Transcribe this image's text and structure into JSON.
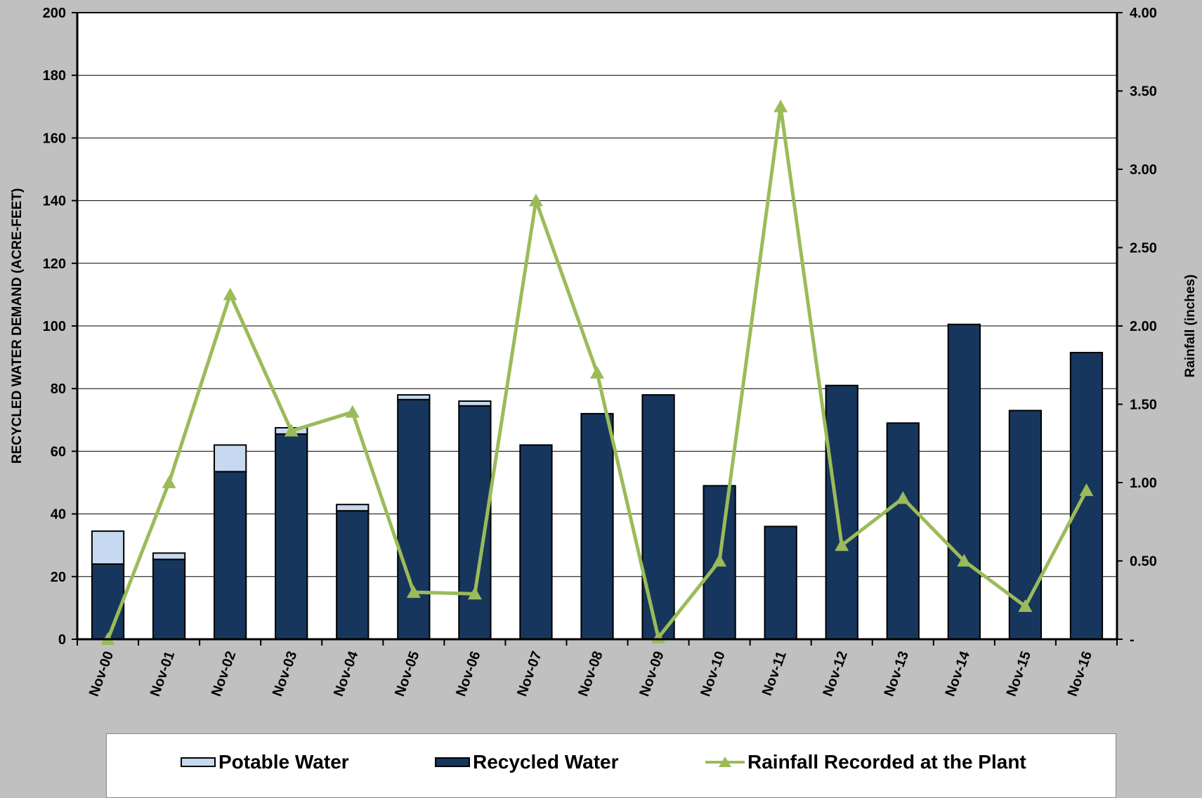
{
  "chart_data": {
    "type": "bar",
    "stacked": true,
    "categories": [
      "Nov-00",
      "Nov-01",
      "Nov-02",
      "Nov-03",
      "Nov-04",
      "Nov-05",
      "Nov-06",
      "Nov-07",
      "Nov-08",
      "Nov-09",
      "Nov-10",
      "Nov-11",
      "Nov-12",
      "Nov-13",
      "Nov-14",
      "Nov-15",
      "Nov-16"
    ],
    "series": [
      {
        "name": "Recycled Water",
        "axis": "left",
        "type": "bar",
        "color": "#17365d",
        "values": [
          24,
          25.5,
          53.5,
          65.5,
          41,
          76.5,
          74.5,
          62,
          72,
          78,
          49,
          36,
          81,
          69,
          100.5,
          73,
          91.5
        ]
      },
      {
        "name": "Potable Water",
        "axis": "left",
        "type": "bar",
        "color": "#c6d9f1",
        "values": [
          10.5,
          2,
          8.5,
          2,
          2,
          1.5,
          1.5,
          0,
          0,
          0,
          0,
          0,
          0,
          0,
          0,
          0,
          0
        ]
      },
      {
        "name": "Rainfall Recorded at the Plant",
        "axis": "right",
        "type": "line",
        "color": "#9bbb59",
        "values": [
          0,
          1.0,
          2.2,
          1.33,
          1.45,
          0.3,
          0.29,
          2.8,
          1.7,
          0.01,
          0.5,
          3.4,
          0.6,
          0.9,
          0.5,
          0.21,
          0.95
        ]
      }
    ],
    "ylabel": "RECYCLED WATER DEMAND (ACRE-FEET)",
    "y2label": "Rainfall (inches)",
    "ylim": [
      0,
      200
    ],
    "yticks": [
      "0",
      "20",
      "40",
      "60",
      "80",
      "100",
      "120",
      "140",
      "160",
      "180",
      "200"
    ],
    "y2lim": [
      0,
      4
    ],
    "y2ticks": [
      "-",
      "0.50",
      "1.00",
      "1.50",
      "2.00",
      "2.50",
      "3.00",
      "3.50",
      "4.00"
    ],
    "grid": true,
    "legend_position": "bottom"
  },
  "legend": {
    "potable_label": "Potable Water",
    "recycled_label": "Recycled Water",
    "rainfall_label": "Rainfall Recorded at the Plant"
  }
}
